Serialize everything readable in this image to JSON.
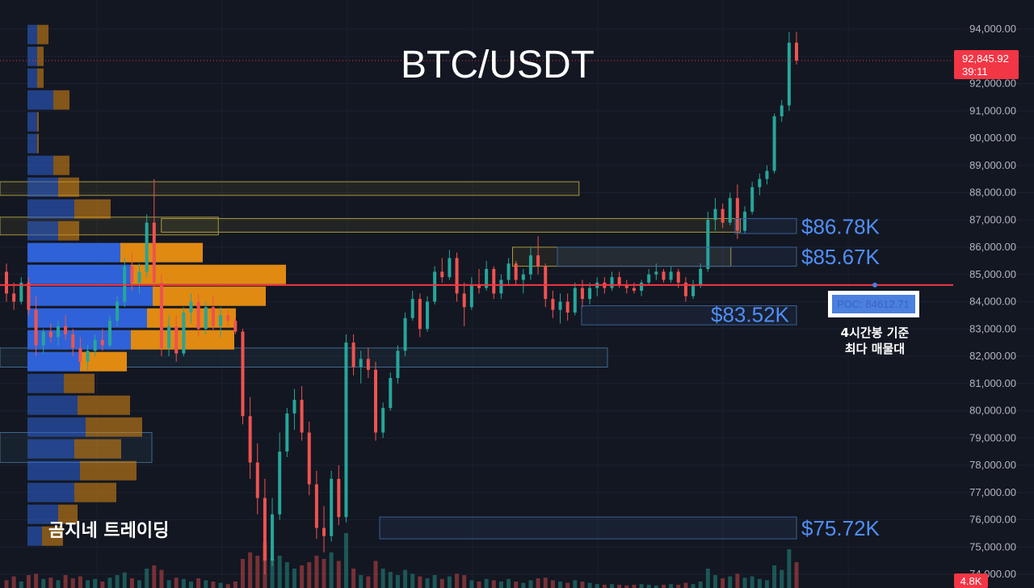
{
  "chart_data": {
    "type": "candlestick",
    "title": "BTC/USDT",
    "watermark": "곰지네 트레이딩",
    "ylim": [
      74000,
      94000
    ],
    "y_ticks": [
      "94,000.00",
      "93,000.00",
      "92,000.00",
      "91,000.00",
      "90,000.00",
      "89,000.00",
      "88,000.00",
      "87,000.00",
      "86,000.00",
      "85,000.00",
      "84,000.00",
      "83,000.00",
      "82,000.00",
      "81,000.00",
      "80,000.00",
      "79,000.00",
      "78,000.00",
      "77,000.00",
      "76,000.00",
      "75,000.00",
      "74,000.00"
    ],
    "current_price": {
      "value": 92845.92,
      "label": "92,845.92",
      "countdown": "39:11",
      "color": "#f23645"
    },
    "volume_label": "4.8K",
    "poc": {
      "value": 84612.71,
      "label": "POC: 84612.71",
      "note_line1": "4시간봉 기준",
      "note_line2": "최다 매물대",
      "color": "#f23645"
    },
    "levels": [
      {
        "value": 86780,
        "label": "$86.78K",
        "band": [
          86500,
          87050
        ]
      },
      {
        "value": 85670,
        "label": "$85.67K",
        "band": [
          85300,
          86000
        ]
      },
      {
        "value": 83520,
        "label": "$83.52K",
        "band": [
          83150,
          83850
        ]
      },
      {
        "value": 75720,
        "label": "$75.72K",
        "band": [
          75300,
          76100
        ]
      }
    ],
    "zones": [
      {
        "lo": 87900,
        "hi": 88400,
        "start": 0.0,
        "end": 0.61,
        "kind": "supply"
      },
      {
        "lo": 86450,
        "hi": 87100,
        "start": 0.0,
        "end": 0.23,
        "kind": "supply"
      },
      {
        "lo": 86550,
        "hi": 87050,
        "start": 0.17,
        "end": 0.78,
        "kind": "supply"
      },
      {
        "lo": 85300,
        "hi": 86000,
        "start": 0.54,
        "end": 0.77,
        "kind": "supply"
      },
      {
        "lo": 81600,
        "hi": 82300,
        "start": 0.0,
        "end": 0.64,
        "kind": "demand"
      },
      {
        "lo": 78100,
        "hi": 79200,
        "start": 0.0,
        "end": 0.16,
        "kind": "demand"
      }
    ],
    "volume_profile": [
      {
        "price": 93800,
        "buy": 12,
        "sell": 14
      },
      {
        "price": 93000,
        "buy": 12,
        "sell": 8
      },
      {
        "price": 92200,
        "buy": 12,
        "sell": 8
      },
      {
        "price": 91400,
        "buy": 32,
        "sell": 20
      },
      {
        "price": 90600,
        "buy": 12,
        "sell": 2
      },
      {
        "price": 89800,
        "buy": 12,
        "sell": 2
      },
      {
        "price": 89000,
        "buy": 32,
        "sell": 20
      },
      {
        "price": 88200,
        "buy": 38,
        "sell": 26
      },
      {
        "price": 87400,
        "buy": 58,
        "sell": 45
      },
      {
        "price": 86600,
        "buy": 38,
        "sell": 26
      },
      {
        "price": 85800,
        "buy": 115,
        "sell": 102
      },
      {
        "price": 85000,
        "buy": 128,
        "sell": 192
      },
      {
        "price": 84200,
        "buy": 155,
        "sell": 140
      },
      {
        "price": 83400,
        "buy": 148,
        "sell": 110
      },
      {
        "price": 82600,
        "buy": 128,
        "sell": 128
      },
      {
        "price": 81800,
        "buy": 65,
        "sell": 58
      },
      {
        "price": 81000,
        "buy": 45,
        "sell": 38
      },
      {
        "price": 80200,
        "buy": 62,
        "sell": 65
      },
      {
        "price": 79400,
        "buy": 72,
        "sell": 70
      },
      {
        "price": 78600,
        "buy": 58,
        "sell": 58
      },
      {
        "price": 77800,
        "buy": 65,
        "sell": 70
      },
      {
        "price": 77000,
        "buy": 58,
        "sell": 52
      },
      {
        "price": 76200,
        "buy": 38,
        "sell": 24
      },
      {
        "price": 75400,
        "buy": 18,
        "sell": 26
      }
    ],
    "candles": [
      {
        "o": 85100,
        "h": 85400,
        "l": 84000,
        "c": 84300
      },
      {
        "o": 84300,
        "h": 84700,
        "l": 83700,
        "c": 84000
      },
      {
        "o": 84000,
        "h": 84900,
        "l": 83900,
        "c": 84700
      },
      {
        "o": 84700,
        "h": 84900,
        "l": 83500,
        "c": 83700
      },
      {
        "o": 83700,
        "h": 84200,
        "l": 82000,
        "c": 82400
      },
      {
        "o": 82400,
        "h": 83000,
        "l": 82100,
        "c": 82900
      },
      {
        "o": 82900,
        "h": 83200,
        "l": 82500,
        "c": 82700
      },
      {
        "o": 82700,
        "h": 83300,
        "l": 82400,
        "c": 83100
      },
      {
        "o": 83100,
        "h": 83500,
        "l": 82600,
        "c": 82800
      },
      {
        "o": 82800,
        "h": 83000,
        "l": 82000,
        "c": 82300
      },
      {
        "o": 82300,
        "h": 82700,
        "l": 81600,
        "c": 81800
      },
      {
        "o": 81800,
        "h": 82400,
        "l": 81500,
        "c": 82200
      },
      {
        "o": 82200,
        "h": 82800,
        "l": 82000,
        "c": 82600
      },
      {
        "o": 82600,
        "h": 83000,
        "l": 82200,
        "c": 82400
      },
      {
        "o": 82400,
        "h": 83500,
        "l": 82300,
        "c": 83300
      },
      {
        "o": 83300,
        "h": 84200,
        "l": 83100,
        "c": 84000
      },
      {
        "o": 84000,
        "h": 85600,
        "l": 83800,
        "c": 85300
      },
      {
        "o": 85300,
        "h": 85800,
        "l": 84400,
        "c": 84700
      },
      {
        "o": 84700,
        "h": 85400,
        "l": 84300,
        "c": 85100
      },
      {
        "o": 85100,
        "h": 87200,
        "l": 84900,
        "c": 86900
      },
      {
        "o": 86900,
        "h": 88500,
        "l": 84500,
        "c": 84700
      },
      {
        "o": 84700,
        "h": 85000,
        "l": 82000,
        "c": 82300
      },
      {
        "o": 82300,
        "h": 83500,
        "l": 82000,
        "c": 83100
      },
      {
        "o": 83100,
        "h": 83500,
        "l": 81800,
        "c": 82100
      },
      {
        "o": 82100,
        "h": 83800,
        "l": 82000,
        "c": 83600
      },
      {
        "o": 83600,
        "h": 84300,
        "l": 83200,
        "c": 84000
      },
      {
        "o": 84000,
        "h": 84300,
        "l": 82700,
        "c": 83000
      },
      {
        "o": 83000,
        "h": 84000,
        "l": 82800,
        "c": 83800
      },
      {
        "o": 83800,
        "h": 84200,
        "l": 82900,
        "c": 83100
      },
      {
        "o": 83100,
        "h": 83800,
        "l": 82700,
        "c": 83500
      },
      {
        "o": 83500,
        "h": 83700,
        "l": 83100,
        "c": 83300
      },
      {
        "o": 83300,
        "h": 83400,
        "l": 82800,
        "c": 82900
      },
      {
        "o": 82900,
        "h": 83000,
        "l": 79500,
        "c": 79800
      },
      {
        "o": 79800,
        "h": 80500,
        "l": 77500,
        "c": 78100
      },
      {
        "o": 78100,
        "h": 78800,
        "l": 76200,
        "c": 76800
      },
      {
        "o": 76800,
        "h": 77500,
        "l": 74000,
        "c": 74500
      },
      {
        "o": 74500,
        "h": 76800,
        "l": 74300,
        "c": 76200
      },
      {
        "o": 76200,
        "h": 79200,
        "l": 76000,
        "c": 78500
      },
      {
        "o": 78500,
        "h": 80100,
        "l": 78300,
        "c": 79900
      },
      {
        "o": 79900,
        "h": 80800,
        "l": 79300,
        "c": 80400
      },
      {
        "o": 80400,
        "h": 80900,
        "l": 78900,
        "c": 79200
      },
      {
        "o": 79200,
        "h": 79600,
        "l": 76900,
        "c": 77300
      },
      {
        "o": 77300,
        "h": 77800,
        "l": 75300,
        "c": 75700
      },
      {
        "o": 75700,
        "h": 76500,
        "l": 74800,
        "c": 75400
      },
      {
        "o": 75400,
        "h": 77800,
        "l": 75200,
        "c": 77500
      },
      {
        "o": 77500,
        "h": 78000,
        "l": 75800,
        "c": 76100
      },
      {
        "o": 76100,
        "h": 82800,
        "l": 75900,
        "c": 82500
      },
      {
        "o": 82500,
        "h": 82800,
        "l": 81300,
        "c": 81600
      },
      {
        "o": 81600,
        "h": 82200,
        "l": 81000,
        "c": 81900
      },
      {
        "o": 81900,
        "h": 82300,
        "l": 81200,
        "c": 81500
      },
      {
        "o": 81500,
        "h": 81800,
        "l": 78900,
        "c": 79200
      },
      {
        "o": 79200,
        "h": 80300,
        "l": 79000,
        "c": 80100
      },
      {
        "o": 80100,
        "h": 81400,
        "l": 80000,
        "c": 81200
      },
      {
        "o": 81200,
        "h": 82400,
        "l": 81000,
        "c": 82200
      },
      {
        "o": 82200,
        "h": 83600,
        "l": 82000,
        "c": 83400
      },
      {
        "o": 83400,
        "h": 84400,
        "l": 83300,
        "c": 84100
      },
      {
        "o": 84100,
        "h": 84300,
        "l": 82700,
        "c": 83000
      },
      {
        "o": 83000,
        "h": 84200,
        "l": 82900,
        "c": 84000
      },
      {
        "o": 84000,
        "h": 85300,
        "l": 83900,
        "c": 85100
      },
      {
        "o": 85100,
        "h": 85600,
        "l": 84700,
        "c": 84900
      },
      {
        "o": 84900,
        "h": 85900,
        "l": 84800,
        "c": 85600
      },
      {
        "o": 85600,
        "h": 85800,
        "l": 84000,
        "c": 84300
      },
      {
        "o": 84300,
        "h": 84700,
        "l": 83100,
        "c": 83800
      },
      {
        "o": 83800,
        "h": 84900,
        "l": 83700,
        "c": 84600
      },
      {
        "o": 84600,
        "h": 85200,
        "l": 84300,
        "c": 84500
      },
      {
        "o": 84500,
        "h": 85500,
        "l": 84400,
        "c": 85200
      },
      {
        "o": 85200,
        "h": 85300,
        "l": 84100,
        "c": 84300
      },
      {
        "o": 84300,
        "h": 85000,
        "l": 84100,
        "c": 84800
      },
      {
        "o": 84800,
        "h": 85600,
        "l": 84600,
        "c": 85400
      },
      {
        "o": 85400,
        "h": 85500,
        "l": 84600,
        "c": 84800
      },
      {
        "o": 84800,
        "h": 85200,
        "l": 84300,
        "c": 85000
      },
      {
        "o": 85000,
        "h": 86000,
        "l": 84800,
        "c": 85700
      },
      {
        "o": 85700,
        "h": 86400,
        "l": 85000,
        "c": 85300
      },
      {
        "o": 85300,
        "h": 85400,
        "l": 83800,
        "c": 84100
      },
      {
        "o": 84100,
        "h": 84400,
        "l": 83400,
        "c": 83700
      },
      {
        "o": 83700,
        "h": 84300,
        "l": 83200,
        "c": 84000
      },
      {
        "o": 84000,
        "h": 84300,
        "l": 83300,
        "c": 83600
      },
      {
        "o": 83600,
        "h": 84700,
        "l": 83500,
        "c": 84500
      },
      {
        "o": 84500,
        "h": 84800,
        "l": 83800,
        "c": 84100
      },
      {
        "o": 84100,
        "h": 84700,
        "l": 83900,
        "c": 84500
      },
      {
        "o": 84500,
        "h": 84900,
        "l": 84200,
        "c": 84700
      },
      {
        "o": 84700,
        "h": 84900,
        "l": 84300,
        "c": 84500
      },
      {
        "o": 84500,
        "h": 85100,
        "l": 84400,
        "c": 84900
      },
      {
        "o": 84900,
        "h": 85100,
        "l": 84500,
        "c": 84600
      },
      {
        "o": 84600,
        "h": 84800,
        "l": 84300,
        "c": 84500
      },
      {
        "o": 84500,
        "h": 84700,
        "l": 84300,
        "c": 84400
      },
      {
        "o": 84400,
        "h": 84800,
        "l": 84200,
        "c": 84700
      },
      {
        "o": 84700,
        "h": 85200,
        "l": 84600,
        "c": 85000
      },
      {
        "o": 85000,
        "h": 85400,
        "l": 84800,
        "c": 85100
      },
      {
        "o": 85100,
        "h": 85200,
        "l": 84700,
        "c": 84800
      },
      {
        "o": 84800,
        "h": 85300,
        "l": 84700,
        "c": 85100
      },
      {
        "o": 85100,
        "h": 85200,
        "l": 84500,
        "c": 84700
      },
      {
        "o": 84700,
        "h": 84900,
        "l": 84000,
        "c": 84200
      },
      {
        "o": 84200,
        "h": 84800,
        "l": 84100,
        "c": 84600
      },
      {
        "o": 84600,
        "h": 85400,
        "l": 84500,
        "c": 85200
      },
      {
        "o": 85200,
        "h": 87300,
        "l": 85100,
        "c": 87000
      },
      {
        "o": 87000,
        "h": 87800,
        "l": 86600,
        "c": 87400
      },
      {
        "o": 87400,
        "h": 87600,
        "l": 86700,
        "c": 86900
      },
      {
        "o": 86900,
        "h": 88000,
        "l": 86800,
        "c": 87800
      },
      {
        "o": 87800,
        "h": 88300,
        "l": 86300,
        "c": 86600
      },
      {
        "o": 86600,
        "h": 87500,
        "l": 86500,
        "c": 87300
      },
      {
        "o": 87300,
        "h": 88400,
        "l": 87200,
        "c": 88200
      },
      {
        "o": 88200,
        "h": 88700,
        "l": 87900,
        "c": 88500
      },
      {
        "o": 88500,
        "h": 89000,
        "l": 88300,
        "c": 88800
      },
      {
        "o": 88800,
        "h": 90900,
        "l": 88700,
        "c": 90800
      },
      {
        "o": 90800,
        "h": 91400,
        "l": 90600,
        "c": 91200
      },
      {
        "o": 91200,
        "h": 93900,
        "l": 91000,
        "c": 93500
      },
      {
        "o": 93500,
        "h": 93900,
        "l": 92700,
        "c": 92846
      }
    ],
    "volumes": [
      0.12,
      0.18,
      0.1,
      0.2,
      0.22,
      0.14,
      0.16,
      0.12,
      0.2,
      0.15,
      0.18,
      0.12,
      0.14,
      0.1,
      0.16,
      0.2,
      0.24,
      0.15,
      0.12,
      0.3,
      0.35,
      0.28,
      0.12,
      0.16,
      0.14,
      0.1,
      0.15,
      0.12,
      0.1,
      0.08,
      0.06,
      0.1,
      0.45,
      0.55,
      0.5,
      0.7,
      0.45,
      0.5,
      0.4,
      0.3,
      0.35,
      0.4,
      0.5,
      0.45,
      0.55,
      0.42,
      0.85,
      0.3,
      0.2,
      0.18,
      0.42,
      0.3,
      0.25,
      0.2,
      0.28,
      0.22,
      0.18,
      0.15,
      0.2,
      0.14,
      0.18,
      0.22,
      0.2,
      0.12,
      0.1,
      0.14,
      0.12,
      0.1,
      0.14,
      0.1,
      0.08,
      0.12,
      0.15,
      0.16,
      0.12,
      0.1,
      0.08,
      0.12,
      0.1,
      0.08,
      0.06,
      0.05,
      0.06,
      0.05,
      0.04,
      0.05,
      0.06,
      0.05,
      0.04,
      0.05,
      0.06,
      0.05,
      0.08,
      0.06,
      0.1,
      0.3,
      0.2,
      0.15,
      0.18,
      0.22,
      0.16,
      0.18,
      0.14,
      0.12,
      0.35,
      0.28,
      0.6,
      0.4
    ]
  }
}
